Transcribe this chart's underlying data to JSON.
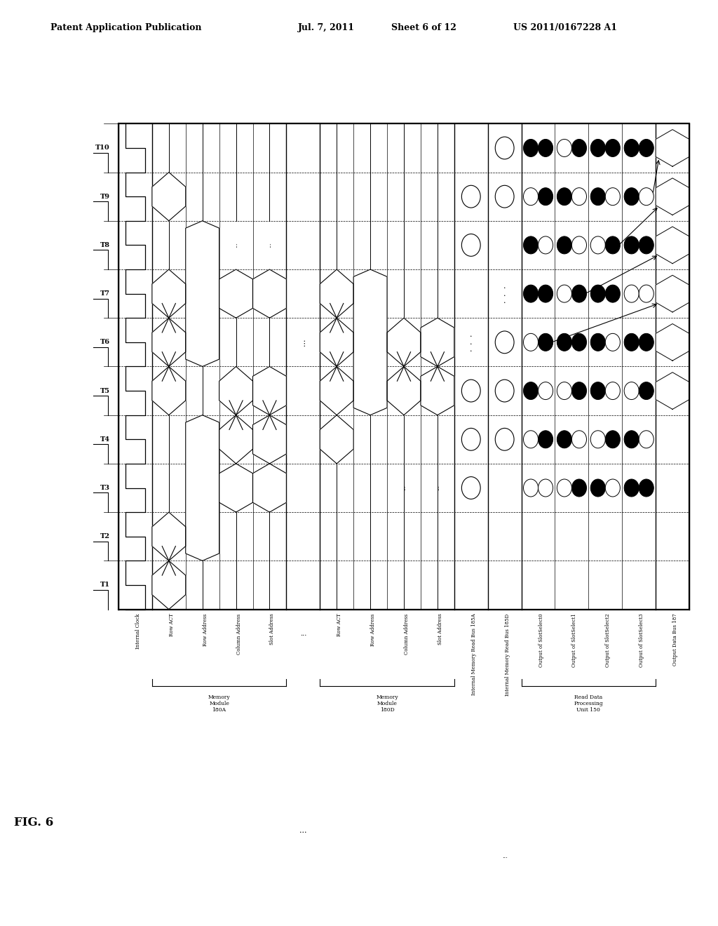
{
  "header_line1": "Patent Application Publication",
  "header_line2": "Jul. 7, 2011",
  "header_line3": "Sheet 6 of 12",
  "header_line4": "US 2011/0167228 A1",
  "fig_label": "FIG. 6",
  "background_color": "#ffffff",
  "time_labels": [
    "T1",
    "T2",
    "T3",
    "T4",
    "T5",
    "T6",
    "T7",
    "T8",
    "T9",
    "T10"
  ],
  "col_labels": [
    "Internal Clock",
    "Row ACT",
    "Row Address",
    "Column Address",
    "Slot Address",
    "...",
    "Row ACT",
    "Row Address",
    "Column Address",
    "Slot Address",
    "Internal Memory Read Bus 185A",
    "Internal Memory Read Bus 185D",
    "Output of SlotSelect0",
    "Output of SlotSelect1",
    "Output of SlotSelect2",
    "Output of SlotSelect3",
    "Output Data Bus 187"
  ],
  "group_info": [
    {
      "label": [
        "Memory",
        "Module",
        "180A"
      ],
      "cols": [
        1,
        4
      ]
    },
    {
      "label": [
        "..."
      ],
      "cols": [
        5,
        5
      ]
    },
    {
      "label": [
        "Memory",
        "Module",
        "180D"
      ],
      "cols": [
        6,
        9
      ]
    },
    {
      "label": [
        "Internal Memory",
        "Read Bus 185A"
      ],
      "cols": [
        10,
        10
      ]
    },
    {
      "label": [
        "Internal Memory",
        "Read Bus 185D"
      ],
      "cols": [
        11,
        11
      ]
    },
    {
      "label": [
        "Read Data",
        "Processing",
        "Unit 150"
      ],
      "cols": [
        12,
        15
      ]
    },
    {
      "label": [
        "Output Data",
        "Bus 187"
      ],
      "cols": [
        16,
        16
      ]
    }
  ]
}
